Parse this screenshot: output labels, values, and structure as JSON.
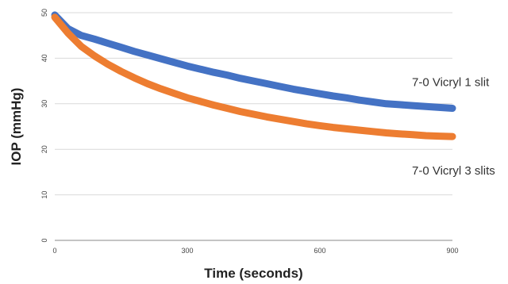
{
  "chart_data": {
    "type": "line",
    "title": "",
    "xlabel": "Time (seconds)",
    "ylabel": "IOP (mmHg)",
    "xlim": [
      0,
      900
    ],
    "ylim": [
      0,
      50
    ],
    "x_ticks": [
      0,
      300,
      600,
      900
    ],
    "y_ticks": [
      0,
      10,
      20,
      30,
      40,
      50
    ],
    "grid": "horizontal",
    "x": [
      0,
      30,
      60,
      90,
      120,
      150,
      180,
      210,
      240,
      270,
      300,
      330,
      360,
      390,
      420,
      450,
      480,
      510,
      540,
      570,
      600,
      630,
      660,
      690,
      720,
      750,
      780,
      810,
      840,
      870,
      900
    ],
    "series": [
      {
        "name": "7-0 Vicryl 1 slit",
        "color": "#4472c4",
        "values": [
          49.5,
          46.5,
          45.0,
          44.2,
          43.3,
          42.4,
          41.5,
          40.7,
          39.9,
          39.1,
          38.3,
          37.6,
          36.9,
          36.3,
          35.6,
          35.0,
          34.4,
          33.8,
          33.2,
          32.7,
          32.2,
          31.7,
          31.3,
          30.8,
          30.4,
          30.0,
          29.8,
          29.6,
          29.4,
          29.2,
          29.0
        ]
      },
      {
        "name": "7-0 Vicryl 3 slits",
        "color": "#ed7d31",
        "values": [
          49.0,
          45.5,
          42.6,
          40.5,
          38.7,
          37.1,
          35.7,
          34.4,
          33.3,
          32.3,
          31.3,
          30.5,
          29.7,
          29.0,
          28.3,
          27.7,
          27.1,
          26.6,
          26.1,
          25.6,
          25.2,
          24.8,
          24.5,
          24.2,
          23.9,
          23.6,
          23.4,
          23.2,
          23.0,
          22.9,
          22.8
        ]
      }
    ]
  }
}
